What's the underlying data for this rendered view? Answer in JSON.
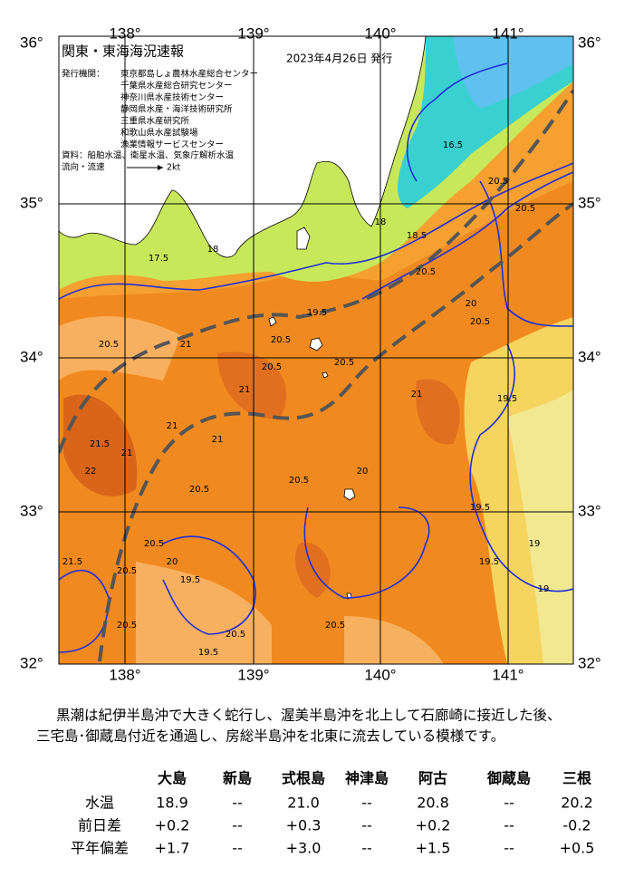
{
  "map": {
    "lon_labels": [
      "138°",
      "139°",
      "140°",
      "141°"
    ],
    "lat_labels": [
      "36°",
      "35°",
      "34°",
      "33°",
      "32°"
    ],
    "title": "関東・東海海況速報",
    "date": "2023年4月26日 発行",
    "issuer_label": "発行機関：",
    "issuers": [
      "東京都島しょ農林水産総合センター",
      "千葉県水産総合研究センター",
      "神奈川県水産技術センター",
      "静岡県水産・海洋技術研究所",
      "三重県水産研究所",
      "和歌山県水産試験場",
      "漁業情報サービスセンター"
    ],
    "source": "資料：船舶水温、衛星水温、気象庁解析水温",
    "flow_label": "流向・流速",
    "flow_scale": "2kt",
    "contour_labels": [
      "20.5",
      "20.5",
      "20.5",
      "20.5",
      "20.5",
      "21",
      "21",
      "21.5",
      "20.5",
      "20.5",
      "20",
      "19.5",
      "19.5",
      "19",
      "18.5",
      "18",
      "16.5",
      "17.5",
      "18",
      "19.5",
      "20.5",
      "21",
      "20.5",
      "20",
      "19.5",
      "19",
      "20.5",
      "21.5",
      "22",
      "21",
      "20.5",
      "19.5",
      "20",
      "20.5",
      "20.5",
      "19.5",
      "20.5",
      "21",
      "21",
      "20.5"
    ]
  },
  "description": [
    "黒潮は紀伊半島沖で大きく蛇行し、渥美半島沖を北上して石廊崎に接近した後、",
    "三宅島･御蔵島付近を通過し、房総半島沖を北東に流去している模様です。"
  ],
  "table": {
    "columns": [
      "大島",
      "新島",
      "式根島",
      "神津島",
      "阿古",
      "御蔵島",
      "三根"
    ],
    "rows": [
      {
        "label": "水温",
        "values": [
          "18.9",
          "--",
          "21.0",
          "--",
          "20.8",
          "--",
          "20.2"
        ]
      },
      {
        "label": "前日差",
        "values": [
          "+0.2",
          "--",
          "+0.3",
          "--",
          "+0.2",
          "--",
          "-0.2"
        ]
      },
      {
        "label": "平年偏差",
        "values": [
          "+1.7",
          "--",
          "+3.0",
          "--",
          "+1.5",
          "--",
          "+0.5"
        ]
      }
    ]
  }
}
